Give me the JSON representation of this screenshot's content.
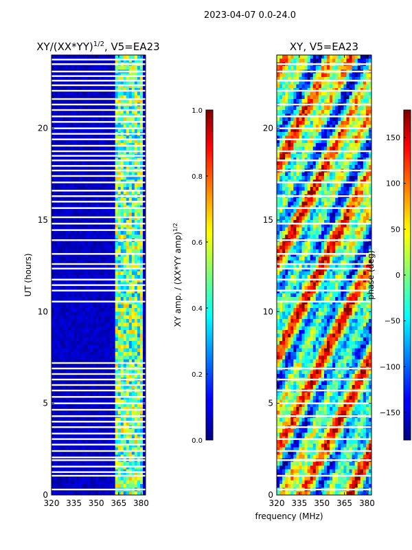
{
  "figure_title": "2023-04-07 0.0-24.0",
  "chart_data": [
    {
      "type": "heatmap",
      "title": "XY/(XX*YY)",
      "title_exponent": "1/2",
      "title_suffix": ", V5=EA23",
      "xlabel": "",
      "ylabel": "UT (hours)",
      "xlim": [
        320,
        383
      ],
      "ylim": [
        0,
        24
      ],
      "xticks": [
        320,
        335,
        350,
        365,
        380
      ],
      "yticks": [
        0,
        5,
        10,
        15,
        20
      ],
      "colormap": "jet",
      "colorbar": {
        "label": "XY amp. / (XX*YY amp)",
        "label_exponent": "1/2",
        "range": [
          0.0,
          1.0
        ],
        "ticks": [
          "0.0",
          "0.2",
          "0.4",
          "0.6",
          "0.8",
          "1.0"
        ],
        "tick_values": [
          0.0,
          0.2,
          0.4,
          0.6,
          0.8,
          1.0
        ]
      },
      "flagged_ut_hours": [
        0.3,
        1.05,
        1.25,
        1.55,
        1.9,
        2.05,
        2.4,
        2.75,
        3.05,
        3.35,
        3.7,
        4.0,
        4.3,
        4.65,
        5.0,
        5.35,
        5.7,
        6.0,
        6.3,
        6.6,
        6.9,
        7.2,
        10.55,
        11.15,
        11.45,
        11.75,
        12.35,
        12.6,
        13.15,
        13.9,
        14.45,
        14.8,
        15.15,
        15.65,
        16.0,
        16.3,
        16.6,
        17.05,
        17.4,
        17.7,
        17.95,
        18.25,
        18.5,
        18.75,
        19.05,
        19.4,
        19.7,
        20.0,
        20.35,
        20.65,
        21.0,
        21.3,
        21.6,
        22.05,
        22.35,
        22.6,
        22.85,
        23.1,
        23.5,
        23.75
      ],
      "bright_band_mhz": [
        362,
        381
      ]
    },
    {
      "type": "heatmap",
      "title": "XY, V5=EA23",
      "xlabel": "",
      "ylabel": "",
      "xlim": [
        320,
        383
      ],
      "ylim": [
        0,
        24
      ],
      "xticks": [
        320,
        335,
        350,
        365,
        380
      ],
      "yticks": [
        0,
        5,
        10,
        15,
        20
      ],
      "colormap": "jet",
      "colorbar": {
        "label": "phase (deg)",
        "range": [
          -180,
          180
        ],
        "ticks": [
          "−150",
          "−100",
          "−50",
          "0",
          "50",
          "100",
          "150"
        ],
        "tick_values": [
          -150,
          -100,
          -50,
          0,
          50,
          100,
          150
        ]
      },
      "flagged_ut_hours": [
        0.3,
        1.05,
        1.9,
        2.4,
        3.05,
        3.7,
        4.3,
        5.0,
        5.7,
        6.3,
        6.9,
        10.55,
        11.15,
        11.75,
        12.35,
        12.6,
        13.15,
        13.9,
        14.8,
        15.65,
        16.3,
        17.05,
        17.7,
        18.25,
        18.75,
        19.4,
        20.0,
        20.65,
        21.3,
        22.05,
        22.6,
        23.1,
        23.5
      ]
    }
  ],
  "shared_xlabel": "frequency (MHz)"
}
